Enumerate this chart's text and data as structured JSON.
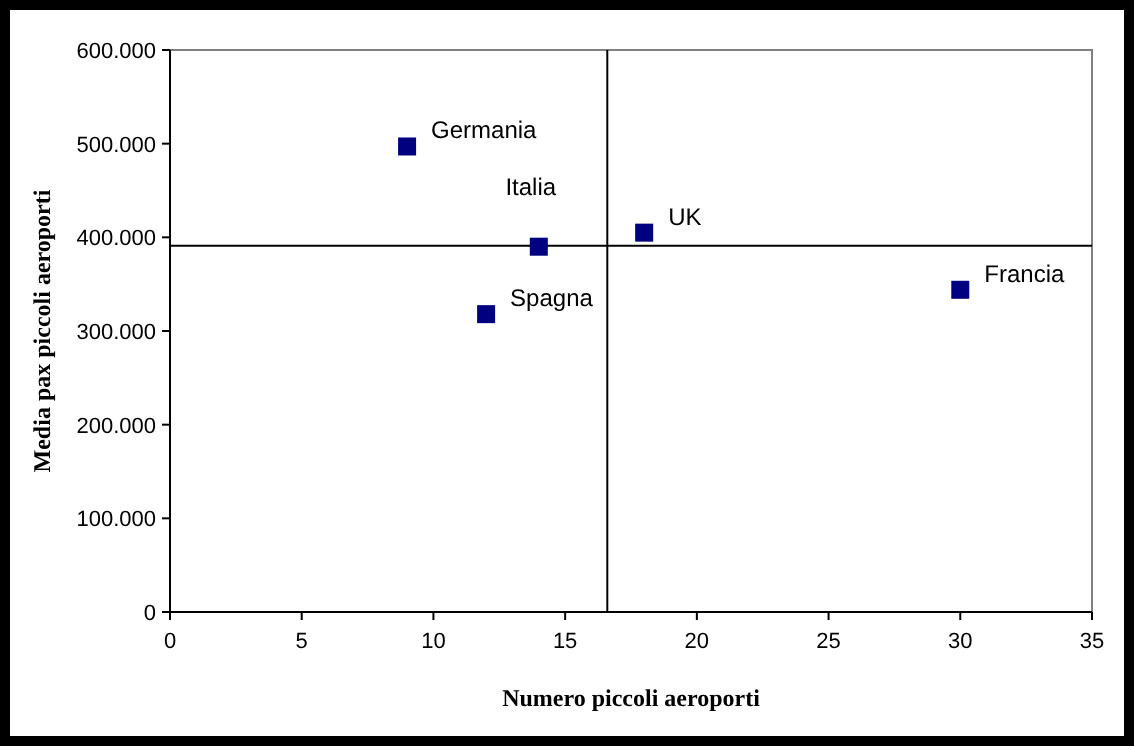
{
  "chart_data": {
    "type": "scatter",
    "xlabel": "Numero piccoli aeroporti",
    "ylabel": "Media pax piccoli aeroporti",
    "x": [
      9,
      14,
      18,
      12,
      30
    ],
    "series": [
      {
        "color": "#000080",
        "values": [
          497000,
          390000,
          405000,
          318000,
          344000
        ]
      }
    ],
    "marker": "square",
    "xlim": [
      0,
      35
    ],
    "xticks": [
      0,
      5,
      10,
      15,
      20,
      25,
      30,
      35
    ],
    "ylim": [
      0,
      600000
    ],
    "yticks": [
      {
        "value": 0,
        "label": "0"
      },
      {
        "value": 100000,
        "label": "100.000"
      },
      {
        "value": 200000,
        "label": "200.000"
      },
      {
        "value": 300000,
        "label": "300.000"
      },
      {
        "value": 400000,
        "label": "400.000"
      },
      {
        "value": 500000,
        "label": "500.000"
      },
      {
        "value": 600000,
        "label": "600.000"
      }
    ],
    "ref_lines": [
      {
        "axis": "x",
        "value": 16.6,
        "color": "#000000"
      },
      {
        "axis": "y",
        "value": 391000,
        "color": "#000000"
      }
    ],
    "annotations": [
      {
        "text": "Germania",
        "x": 9,
        "y": 497000
      },
      {
        "text": "Italia",
        "x": 14,
        "y": 390000
      },
      {
        "text": "UK",
        "x": 18,
        "y": 405000
      },
      {
        "text": "Spagna",
        "x": 12,
        "y": 318000
      },
      {
        "text": "Francia",
        "x": 30,
        "y": 344000
      }
    ],
    "grid": false
  }
}
